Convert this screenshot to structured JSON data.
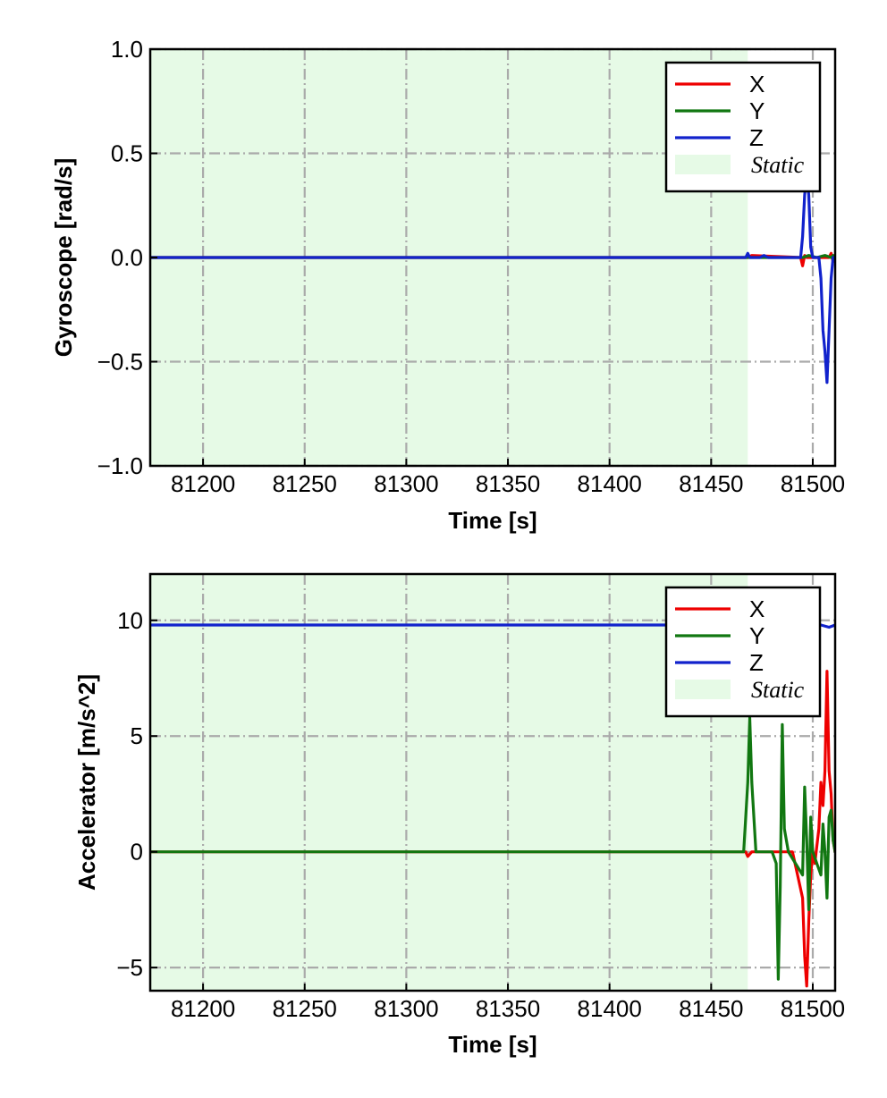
{
  "chart_data": [
    {
      "type": "line",
      "xlabel": "Time [s]",
      "ylabel": "Gyroscope [rad/s]",
      "xlim": [
        81174,
        81511
      ],
      "ylim": [
        -1.0,
        1.0
      ],
      "xticks": [
        81200,
        81250,
        81300,
        81350,
        81400,
        81450,
        81500
      ],
      "yticks": [
        -1.0,
        -0.5,
        0.0,
        0.5,
        1.0
      ],
      "ytick_labels": [
        "−1.0",
        "−0.5",
        "0.0",
        "0.5",
        "1.0"
      ],
      "grid": true,
      "legend_position": "top-right",
      "static_region": {
        "label": "Static",
        "x_start": 81174,
        "x_end": 81468,
        "color": "#e6fae6"
      },
      "series": [
        {
          "name": "X",
          "color": "#ee0000",
          "x": [
            81174,
            81468,
            81470,
            81494,
            81495,
            81496,
            81497,
            81500,
            81503,
            81506,
            81508,
            81509,
            81510,
            81511
          ],
          "y": [
            0.0,
            0.0,
            0.01,
            0.0,
            -0.04,
            0.01,
            0.0,
            0.0,
            0.0,
            0.0,
            0.0,
            0.02,
            -0.02,
            0.0
          ]
        },
        {
          "name": "Y",
          "color": "#117711",
          "x": [
            81174,
            81468,
            81495,
            81498,
            81502,
            81506,
            81509,
            81510,
            81511
          ],
          "y": [
            0.0,
            0.0,
            0.0,
            0.01,
            0.0,
            0.01,
            0.0,
            0.01,
            0.0
          ]
        },
        {
          "name": "Z",
          "color": "#1122cc",
          "x": [
            81174,
            81467,
            81468,
            81469,
            81470,
            81474,
            81476,
            81478,
            81494,
            81495,
            81496,
            81497,
            81498,
            81499,
            81500,
            81503,
            81504,
            81505,
            81506,
            81507,
            81508,
            81509,
            81510,
            81511
          ],
          "y": [
            0.0,
            0.0,
            0.02,
            0.0,
            0.0,
            0.0,
            0.01,
            0.0,
            0.0,
            0.1,
            0.3,
            0.4,
            0.3,
            0.05,
            0.0,
            0.0,
            -0.1,
            -0.35,
            -0.45,
            -0.6,
            -0.35,
            -0.1,
            0.0,
            0.0
          ]
        }
      ]
    },
    {
      "type": "line",
      "xlabel": "Time [s]",
      "ylabel": "Accelerator [m/s^2]",
      "xlim": [
        81174,
        81511
      ],
      "ylim": [
        -6,
        12
      ],
      "xticks": [
        81200,
        81250,
        81300,
        81350,
        81400,
        81450,
        81500
      ],
      "yticks": [
        -5,
        0,
        5,
        10
      ],
      "ytick_labels": [
        "−5",
        "0",
        "5",
        "10"
      ],
      "grid": true,
      "legend_position": "top-right",
      "static_region": {
        "label": "Static",
        "x_start": 81174,
        "x_end": 81468,
        "color": "#e6fae6"
      },
      "series": [
        {
          "name": "X",
          "color": "#ee0000",
          "x": [
            81174,
            81467,
            81468,
            81470,
            81490,
            81495,
            81496,
            81497,
            81498,
            81499,
            81500,
            81501,
            81503,
            81504,
            81505,
            81506,
            81507,
            81508,
            81509,
            81510,
            81511
          ],
          "y": [
            0.0,
            0.0,
            -0.2,
            0.0,
            0.0,
            -2.0,
            -4.5,
            -5.8,
            -3.0,
            -1.0,
            0.0,
            -0.5,
            1.0,
            3.0,
            2.0,
            3.5,
            7.8,
            3.5,
            2.5,
            0.5,
            0.0
          ]
        },
        {
          "name": "Y",
          "color": "#117711",
          "x": [
            81174,
            81466,
            81468,
            81469,
            81470,
            81472,
            81473,
            81480,
            81482,
            81483,
            81484,
            81485,
            81486,
            81488,
            81495,
            81496,
            81497,
            81498,
            81499,
            81500,
            81502,
            81504,
            81505,
            81506,
            81507,
            81508,
            81509,
            81510,
            81511
          ],
          "y": [
            0.0,
            0.0,
            3.0,
            5.8,
            3.0,
            0.0,
            0.0,
            0.0,
            -0.5,
            -5.5,
            -1.5,
            5.5,
            1.0,
            0.0,
            -1.0,
            2.8,
            0.5,
            -2.5,
            1.5,
            0.0,
            -0.5,
            -1.0,
            1.2,
            0.0,
            -2.0,
            1.5,
            1.8,
            0.5,
            0.0
          ]
        },
        {
          "name": "Z",
          "color": "#1122cc",
          "x": [
            81174,
            81468,
            81470,
            81472,
            81474,
            81476,
            81478,
            81480,
            81484,
            81486,
            81490,
            81496,
            81500,
            81504,
            81508,
            81511
          ],
          "y": [
            9.8,
            9.8,
            9.7,
            9.9,
            9.8,
            9.7,
            9.9,
            9.8,
            9.7,
            9.8,
            9.8,
            9.7,
            9.9,
            9.8,
            9.7,
            9.8
          ]
        }
      ]
    }
  ]
}
